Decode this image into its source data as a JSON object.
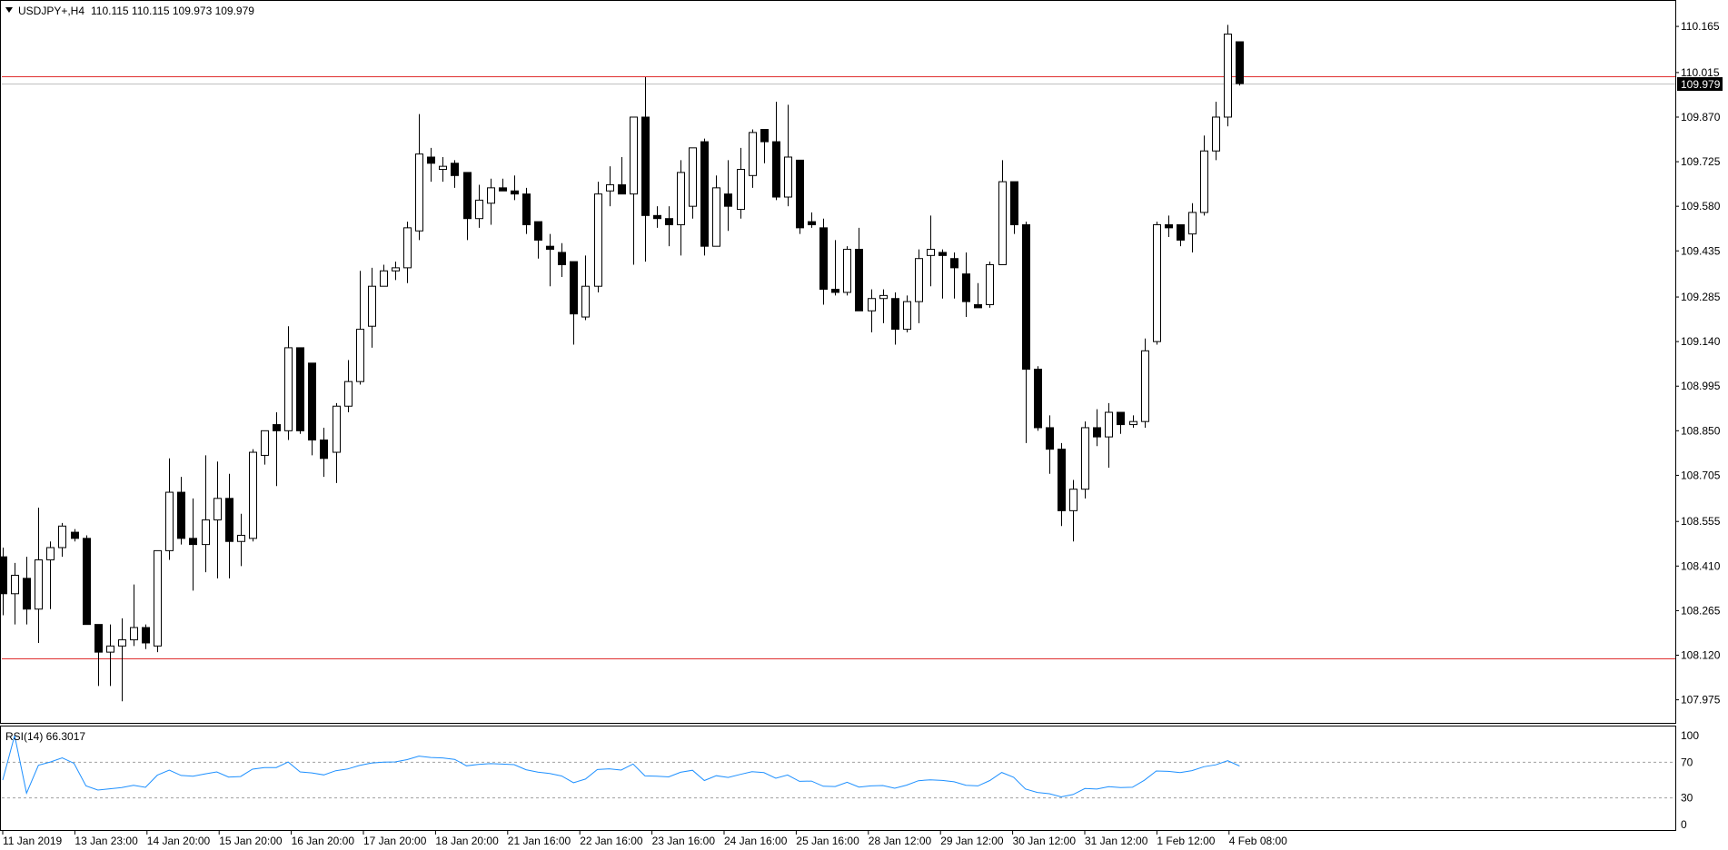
{
  "header": {
    "symbol_label": "USDJPY+,H4",
    "ohlc_values": "110.115 110.115 109.973 109.979"
  },
  "current_price_label": "109.979",
  "colors": {
    "background": "#ffffff",
    "bull_body": "#ffffff",
    "bear_body": "#000000",
    "wick": "#000000",
    "level_line": "#e03030",
    "rsi_line": "#1e90ff",
    "rsi_levels": "#a0a0a0"
  },
  "rsi_panel": {
    "label": "RSI(14) 66.3017",
    "ticks": [
      "100",
      "70",
      "30",
      "0"
    ]
  },
  "chart_data": {
    "type": "candlestick",
    "timeframe": "H4",
    "price_ticks": [
      "110.165",
      "110.015",
      "109.870",
      "109.725",
      "109.580",
      "109.435",
      "109.285",
      "109.140",
      "108.995",
      "108.850",
      "108.705",
      "108.555",
      "108.410",
      "108.265",
      "108.120",
      "107.975"
    ],
    "ylim": [
      107.9,
      110.245
    ],
    "current_price": 109.979,
    "horizontal_levels": [
      110.004,
      108.11
    ],
    "time_labels": [
      "11 Jan 2019",
      "13 Jan 23:00",
      "14 Jan 20:00",
      "15 Jan 20:00",
      "16 Jan 20:00",
      "17 Jan 20:00",
      "18 Jan 20:00",
      "21 Jan 16:00",
      "22 Jan 16:00",
      "23 Jan 16:00",
      "24 Jan 16:00",
      "25 Jan 16:00",
      "28 Jan 12:00",
      "29 Jan 12:00",
      "30 Jan 12:00",
      "31 Jan 12:00",
      "1 Feb 12:00",
      "4 Feb 08:00"
    ],
    "candles": [
      {
        "o": 108.44,
        "h": 108.47,
        "l": 108.25,
        "c": 108.32
      },
      {
        "o": 108.32,
        "h": 108.42,
        "l": 108.22,
        "c": 108.38
      },
      {
        "o": 108.37,
        "h": 108.44,
        "l": 108.22,
        "c": 108.27
      },
      {
        "o": 108.27,
        "h": 108.6,
        "l": 108.16,
        "c": 108.43
      },
      {
        "o": 108.43,
        "h": 108.49,
        "l": 108.27,
        "c": 108.47
      },
      {
        "o": 108.47,
        "h": 108.55,
        "l": 108.44,
        "c": 108.54
      },
      {
        "o": 108.52,
        "h": 108.53,
        "l": 108.49,
        "c": 108.5
      },
      {
        "o": 108.5,
        "h": 108.51,
        "l": 108.22,
        "c": 108.22
      },
      {
        "o": 108.22,
        "h": 108.22,
        "l": 108.02,
        "c": 108.13
      },
      {
        "o": 108.13,
        "h": 108.22,
        "l": 108.02,
        "c": 108.15
      },
      {
        "o": 108.15,
        "h": 108.24,
        "l": 107.97,
        "c": 108.17
      },
      {
        "o": 108.17,
        "h": 108.35,
        "l": 108.15,
        "c": 108.21
      },
      {
        "o": 108.21,
        "h": 108.22,
        "l": 108.14,
        "c": 108.16
      },
      {
        "o": 108.15,
        "h": 108.46,
        "l": 108.13,
        "c": 108.46
      },
      {
        "o": 108.46,
        "h": 108.76,
        "l": 108.43,
        "c": 108.65
      },
      {
        "o": 108.65,
        "h": 108.7,
        "l": 108.48,
        "c": 108.5
      },
      {
        "o": 108.5,
        "h": 108.63,
        "l": 108.33,
        "c": 108.48
      },
      {
        "o": 108.48,
        "h": 108.77,
        "l": 108.39,
        "c": 108.56
      },
      {
        "o": 108.56,
        "h": 108.75,
        "l": 108.37,
        "c": 108.63
      },
      {
        "o": 108.63,
        "h": 108.71,
        "l": 108.37,
        "c": 108.49
      },
      {
        "o": 108.49,
        "h": 108.58,
        "l": 108.41,
        "c": 108.51
      },
      {
        "o": 108.5,
        "h": 108.79,
        "l": 108.49,
        "c": 108.78
      },
      {
        "o": 108.77,
        "h": 108.85,
        "l": 108.74,
        "c": 108.85
      },
      {
        "o": 108.87,
        "h": 108.91,
        "l": 108.67,
        "c": 108.85
      },
      {
        "o": 108.85,
        "h": 109.19,
        "l": 108.82,
        "c": 109.12
      },
      {
        "o": 109.12,
        "h": 109.12,
        "l": 108.84,
        "c": 108.85
      },
      {
        "o": 109.07,
        "h": 109.07,
        "l": 108.77,
        "c": 108.82
      },
      {
        "o": 108.82,
        "h": 108.86,
        "l": 108.7,
        "c": 108.76
      },
      {
        "o": 108.78,
        "h": 108.94,
        "l": 108.68,
        "c": 108.93
      },
      {
        "o": 108.93,
        "h": 109.08,
        "l": 108.91,
        "c": 109.01
      },
      {
        "o": 109.01,
        "h": 109.37,
        "l": 109.0,
        "c": 109.18
      },
      {
        "o": 109.19,
        "h": 109.38,
        "l": 109.12,
        "c": 109.32
      },
      {
        "o": 109.32,
        "h": 109.39,
        "l": 109.33,
        "c": 109.37
      },
      {
        "o": 109.37,
        "h": 109.4,
        "l": 109.34,
        "c": 109.38
      },
      {
        "o": 109.38,
        "h": 109.53,
        "l": 109.33,
        "c": 109.51
      },
      {
        "o": 109.5,
        "h": 109.88,
        "l": 109.47,
        "c": 109.75
      },
      {
        "o": 109.74,
        "h": 109.77,
        "l": 109.66,
        "c": 109.72
      },
      {
        "o": 109.7,
        "h": 109.74,
        "l": 109.66,
        "c": 109.71
      },
      {
        "o": 109.72,
        "h": 109.73,
        "l": 109.64,
        "c": 109.68
      },
      {
        "o": 109.69,
        "h": 109.69,
        "l": 109.47,
        "c": 109.54
      },
      {
        "o": 109.54,
        "h": 109.65,
        "l": 109.51,
        "c": 109.6
      },
      {
        "o": 109.59,
        "h": 109.67,
        "l": 109.52,
        "c": 109.64
      },
      {
        "o": 109.64,
        "h": 109.67,
        "l": 109.63,
        "c": 109.63
      },
      {
        "o": 109.63,
        "h": 109.68,
        "l": 109.6,
        "c": 109.62
      },
      {
        "o": 109.62,
        "h": 109.64,
        "l": 109.49,
        "c": 109.52
      },
      {
        "o": 109.53,
        "h": 109.53,
        "l": 109.41,
        "c": 109.47
      },
      {
        "o": 109.45,
        "h": 109.49,
        "l": 109.32,
        "c": 109.44
      },
      {
        "o": 109.43,
        "h": 109.46,
        "l": 109.35,
        "c": 109.39
      },
      {
        "o": 109.4,
        "h": 109.4,
        "l": 109.13,
        "c": 109.23
      },
      {
        "o": 109.22,
        "h": 109.42,
        "l": 109.21,
        "c": 109.32
      },
      {
        "o": 109.32,
        "h": 109.66,
        "l": 109.3,
        "c": 109.62
      },
      {
        "o": 109.63,
        "h": 109.71,
        "l": 109.58,
        "c": 109.65
      },
      {
        "o": 109.65,
        "h": 109.74,
        "l": 109.63,
        "c": 109.62
      },
      {
        "o": 109.62,
        "h": 109.87,
        "l": 109.39,
        "c": 109.87
      },
      {
        "o": 109.87,
        "h": 110.0,
        "l": 109.4,
        "c": 109.55
      },
      {
        "o": 109.55,
        "h": 109.58,
        "l": 109.51,
        "c": 109.54
      },
      {
        "o": 109.54,
        "h": 109.58,
        "l": 109.45,
        "c": 109.52
      },
      {
        "o": 109.52,
        "h": 109.73,
        "l": 109.42,
        "c": 109.69
      },
      {
        "o": 109.58,
        "h": 109.77,
        "l": 109.54,
        "c": 109.77
      },
      {
        "o": 109.79,
        "h": 109.8,
        "l": 109.42,
        "c": 109.45
      },
      {
        "o": 109.45,
        "h": 109.68,
        "l": 109.45,
        "c": 109.64
      },
      {
        "o": 109.62,
        "h": 109.73,
        "l": 109.5,
        "c": 109.58
      },
      {
        "o": 109.57,
        "h": 109.77,
        "l": 109.54,
        "c": 109.7
      },
      {
        "o": 109.68,
        "h": 109.83,
        "l": 109.64,
        "c": 109.82
      },
      {
        "o": 109.83,
        "h": 109.83,
        "l": 109.72,
        "c": 109.79
      },
      {
        "o": 109.79,
        "h": 109.92,
        "l": 109.6,
        "c": 109.61
      },
      {
        "o": 109.61,
        "h": 109.91,
        "l": 109.58,
        "c": 109.74
      },
      {
        "o": 109.73,
        "h": 109.73,
        "l": 109.49,
        "c": 109.51
      },
      {
        "o": 109.53,
        "h": 109.56,
        "l": 109.51,
        "c": 109.52
      },
      {
        "o": 109.51,
        "h": 109.54,
        "l": 109.26,
        "c": 109.31
      },
      {
        "o": 109.31,
        "h": 109.47,
        "l": 109.29,
        "c": 109.3
      },
      {
        "o": 109.3,
        "h": 109.45,
        "l": 109.29,
        "c": 109.44
      },
      {
        "o": 109.44,
        "h": 109.51,
        "l": 109.24,
        "c": 109.24
      },
      {
        "o": 109.24,
        "h": 109.31,
        "l": 109.17,
        "c": 109.28
      },
      {
        "o": 109.28,
        "h": 109.31,
        "l": 109.2,
        "c": 109.29
      },
      {
        "o": 109.28,
        "h": 109.3,
        "l": 109.13,
        "c": 109.18
      },
      {
        "o": 109.18,
        "h": 109.29,
        "l": 109.17,
        "c": 109.27
      },
      {
        "o": 109.27,
        "h": 109.44,
        "l": 109.2,
        "c": 109.41
      },
      {
        "o": 109.42,
        "h": 109.55,
        "l": 109.32,
        "c": 109.44
      },
      {
        "o": 109.43,
        "h": 109.44,
        "l": 109.28,
        "c": 109.42
      },
      {
        "o": 109.41,
        "h": 109.43,
        "l": 109.28,
        "c": 109.38
      },
      {
        "o": 109.36,
        "h": 109.43,
        "l": 109.22,
        "c": 109.27
      },
      {
        "o": 109.26,
        "h": 109.33,
        "l": 109.25,
        "c": 109.25
      },
      {
        "o": 109.26,
        "h": 109.4,
        "l": 109.25,
        "c": 109.39
      },
      {
        "o": 109.39,
        "h": 109.73,
        "l": 109.39,
        "c": 109.66
      },
      {
        "o": 109.66,
        "h": 109.66,
        "l": 109.49,
        "c": 109.52
      },
      {
        "o": 109.52,
        "h": 109.53,
        "l": 108.81,
        "c": 109.05
      },
      {
        "o": 109.05,
        "h": 109.06,
        "l": 108.85,
        "c": 108.86
      },
      {
        "o": 108.86,
        "h": 108.9,
        "l": 108.71,
        "c": 108.79
      },
      {
        "o": 108.79,
        "h": 108.81,
        "l": 108.54,
        "c": 108.59
      },
      {
        "o": 108.59,
        "h": 108.69,
        "l": 108.49,
        "c": 108.66
      },
      {
        "o": 108.66,
        "h": 108.88,
        "l": 108.63,
        "c": 108.86
      },
      {
        "o": 108.86,
        "h": 108.92,
        "l": 108.8,
        "c": 108.83
      },
      {
        "o": 108.83,
        "h": 108.94,
        "l": 108.73,
        "c": 108.91
      },
      {
        "o": 108.91,
        "h": 108.91,
        "l": 108.84,
        "c": 108.87
      },
      {
        "o": 108.87,
        "h": 108.9,
        "l": 108.86,
        "c": 108.88
      },
      {
        "o": 108.88,
        "h": 109.15,
        "l": 108.86,
        "c": 109.11
      },
      {
        "o": 109.14,
        "h": 109.53,
        "l": 109.13,
        "c": 109.52
      },
      {
        "o": 109.52,
        "h": 109.55,
        "l": 109.48,
        "c": 109.51
      },
      {
        "o": 109.52,
        "h": 109.52,
        "l": 109.45,
        "c": 109.47
      },
      {
        "o": 109.49,
        "h": 109.59,
        "l": 109.43,
        "c": 109.56
      },
      {
        "o": 109.56,
        "h": 109.81,
        "l": 109.55,
        "c": 109.76
      },
      {
        "o": 109.76,
        "h": 109.92,
        "l": 109.73,
        "c": 109.87
      },
      {
        "o": 109.87,
        "h": 110.17,
        "l": 109.84,
        "c": 110.14
      },
      {
        "o": 110.115,
        "h": 110.115,
        "l": 109.973,
        "c": 109.979
      }
    ]
  }
}
